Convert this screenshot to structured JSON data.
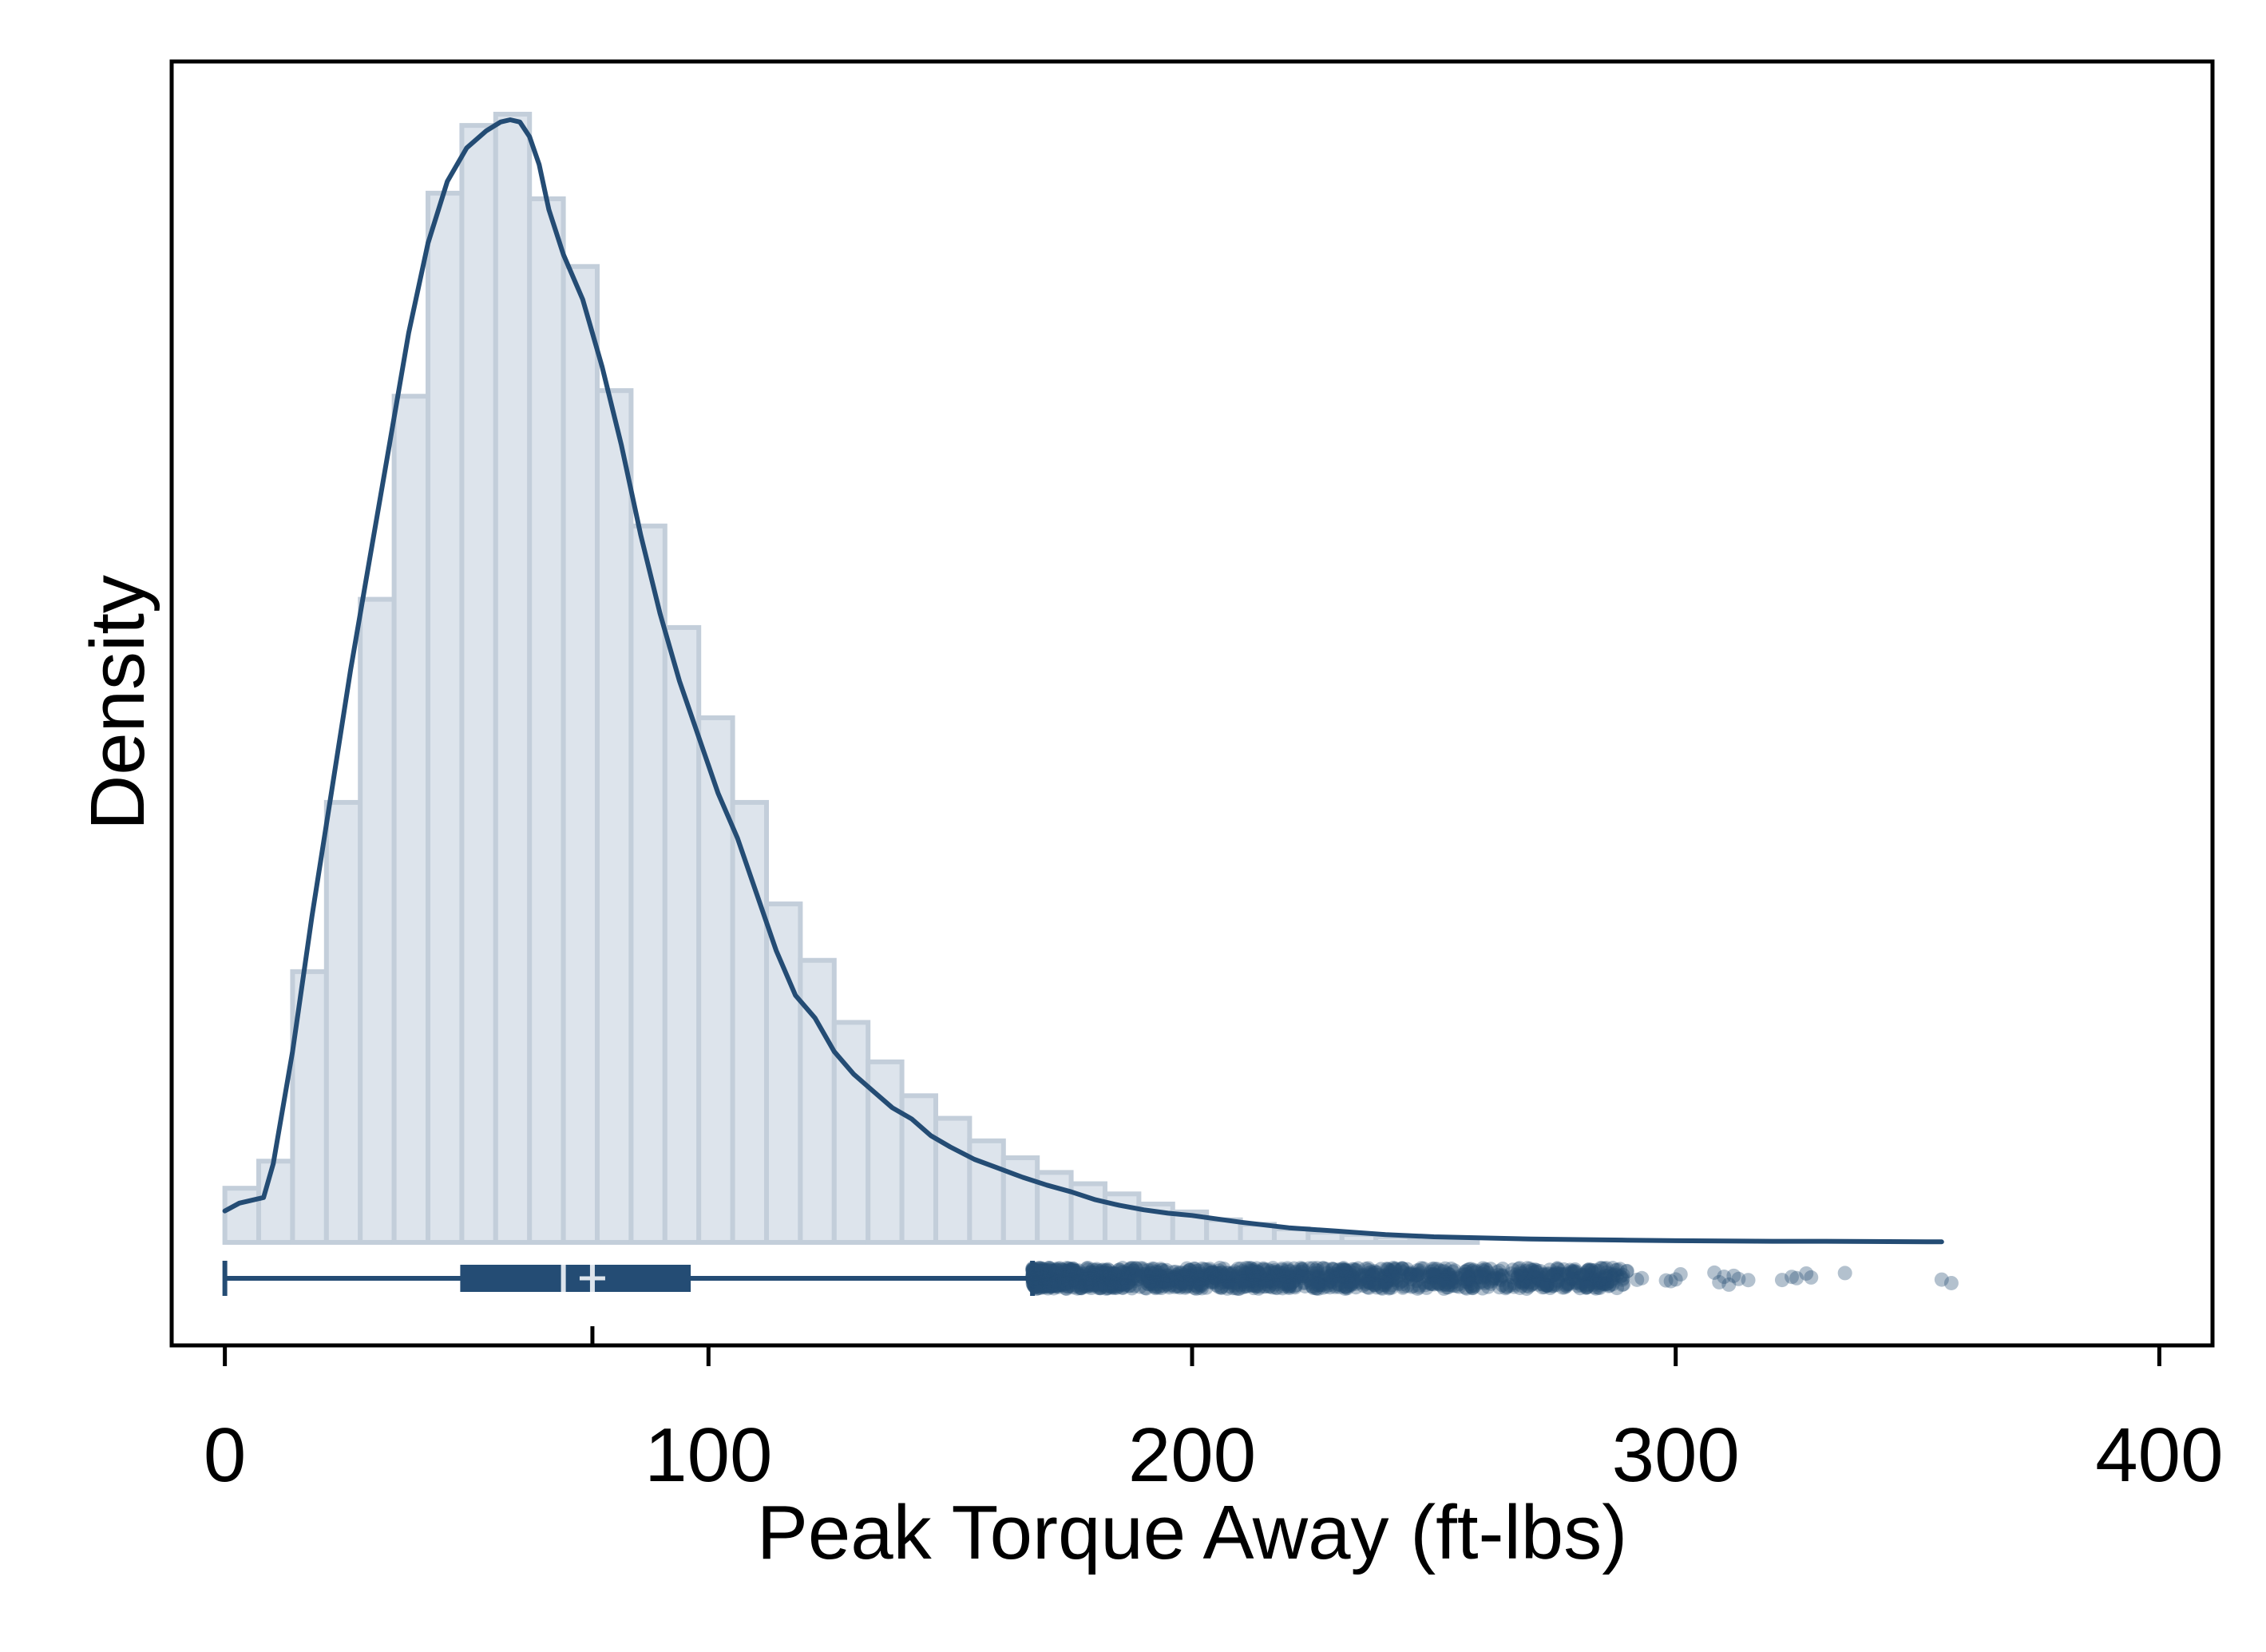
{
  "colors": {
    "bar_fill": "#dde4ec",
    "bar_stroke": "#c3ceda",
    "series": "#244c74",
    "median_mark": "#dde4ec",
    "frame": "#000000"
  },
  "chart_data": {
    "type": "histogram",
    "title": "",
    "xlabel": "Peak Torque Away (ft-lbs)",
    "ylabel": "Density",
    "xlim": [
      -11,
      411
    ],
    "x_ticks": [
      "0",
      "100",
      "200",
      "300",
      "400"
    ],
    "y_ticks": [],
    "grid": false,
    "histogram": {
      "bin_width": 7,
      "bin_starts": [
        0,
        7,
        14,
        21,
        28,
        35,
        42,
        49,
        56,
        63,
        70,
        77,
        84,
        91,
        98,
        105,
        112,
        119,
        126,
        133,
        140,
        147,
        154,
        161,
        168,
        175,
        182,
        189,
        196,
        203,
        210,
        217,
        224,
        231,
        238,
        245,
        252
      ],
      "relative_heights": [
        0.048,
        0.072,
        0.24,
        0.39,
        0.57,
        0.75,
        0.93,
        0.99,
        1.0,
        0.925,
        0.865,
        0.755,
        0.635,
        0.545,
        0.465,
        0.39,
        0.3,
        0.25,
        0.195,
        0.16,
        0.13,
        0.11,
        0.09,
        0.075,
        0.062,
        0.052,
        0.043,
        0.034,
        0.027,
        0.02,
        0.016,
        0.012,
        0.009,
        0.007,
        0.005,
        0.004,
        0.003
      ]
    },
    "density_curve": {
      "x": [
        0,
        3,
        8,
        10,
        14,
        18,
        22,
        26,
        30,
        34,
        38,
        42,
        46,
        50,
        54,
        57,
        59,
        61,
        63,
        65,
        67,
        70,
        74,
        78,
        82,
        86,
        90,
        94,
        98,
        102,
        106,
        110,
        114,
        118,
        122,
        126,
        130,
        134,
        138,
        142,
        146,
        150,
        155,
        160,
        165,
        170,
        175,
        180,
        185,
        190,
        195,
        200,
        210,
        220,
        230,
        240,
        250,
        260,
        270,
        280,
        290,
        300,
        310,
        320,
        330,
        340,
        355
      ],
      "y": [
        0.028,
        0.035,
        0.04,
        0.07,
        0.17,
        0.29,
        0.4,
        0.51,
        0.61,
        0.71,
        0.81,
        0.89,
        0.945,
        0.975,
        0.99,
        0.998,
        1.0,
        0.998,
        0.985,
        0.96,
        0.92,
        0.88,
        0.84,
        0.78,
        0.71,
        0.63,
        0.56,
        0.5,
        0.45,
        0.4,
        0.36,
        0.31,
        0.26,
        0.22,
        0.2,
        0.17,
        0.15,
        0.135,
        0.12,
        0.11,
        0.095,
        0.085,
        0.074,
        0.066,
        0.058,
        0.051,
        0.045,
        0.038,
        0.033,
        0.029,
        0.026,
        0.024,
        0.018,
        0.013,
        0.01,
        0.007,
        0.005,
        0.004,
        0.003,
        0.0025,
        0.002,
        0.0015,
        0.0012,
        0.001,
        0.001,
        0.0008,
        0.0005
      ]
    },
    "boxplot": {
      "whisker_low": 0,
      "q1": 49,
      "median": 70,
      "mean": 76,
      "q3": 96,
      "whisker_high": 167,
      "outliers_dense_range": [
        167,
        290
      ],
      "outliers_sparse": [
        292,
        293,
        298,
        299,
        300,
        301,
        308,
        309,
        310,
        311,
        312,
        313,
        315,
        322,
        324,
        325,
        327,
        328,
        335,
        355,
        357
      ]
    }
  }
}
